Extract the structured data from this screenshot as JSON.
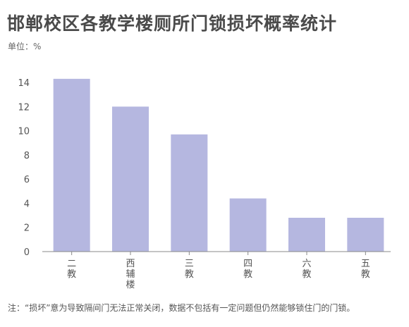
{
  "header": {
    "title": "邯郸校区各教学楼厕所门锁损坏概率统计",
    "unit": "单位：%"
  },
  "footer": {
    "note": "注：“损坏”意为导致隔间门无法正常关闭，数据不包括有一定问题但仍然能够锁住门的门锁。"
  },
  "colors": {
    "bar": "#b5b7e0",
    "axis": "#888888",
    "tick_text": "#555555"
  },
  "chart_data": {
    "type": "bar",
    "title": "邯郸校区各教学楼厕所门锁损坏概率统计",
    "ylabel": "单位：%",
    "xlabel": "",
    "categories": [
      "二教",
      "西辅楼",
      "三教",
      "四教",
      "六教",
      "五教"
    ],
    "values": [
      14.3,
      12.0,
      9.7,
      4.4,
      2.8,
      2.8
    ],
    "ylim": [
      0,
      14
    ],
    "yticks": [
      0,
      2,
      4,
      6,
      8,
      10,
      12,
      14
    ],
    "grid": false,
    "legend": "none"
  }
}
